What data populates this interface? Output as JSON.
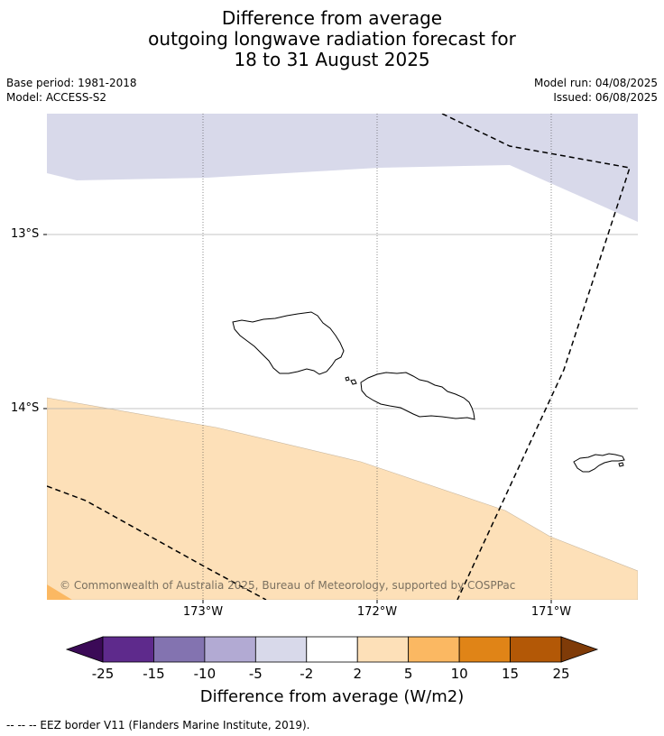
{
  "title": {
    "line1": "Difference from average",
    "line2": "outgoing longwave radiation forecast for",
    "line3": "18 to 31 August 2025"
  },
  "meta": {
    "base_period": "Base period: 1981-2018",
    "model": "Model: ACCESS-S2",
    "model_run": "Model run: 04/08/2025",
    "issued": "Issued: 06/08/2025"
  },
  "map": {
    "lat_labels": [
      "13°S",
      "14°S"
    ],
    "lon_labels": [
      "173°W",
      "172°W",
      "171°W"
    ],
    "copyright": "© Commonwealth of Australia 2025, Bureau of Meteorology, supported by COSPPac",
    "colors": {
      "light_lavender": "#d8d9ea",
      "light_orange": "#fde0b8",
      "orange": "#fbb862"
    }
  },
  "colorbar": {
    "title": "Difference from average (W/m2)",
    "tick_labels": [
      "-25",
      "-15",
      "-10",
      "-5",
      "-2",
      "2",
      "5",
      "10",
      "15",
      "25"
    ],
    "colors": [
      "#3b0a57",
      "#5e2a8c",
      "#8373b0",
      "#b2aad3",
      "#d8d9ea",
      "#ffffff",
      "#fde0b8",
      "#fbb862",
      "#e08417",
      "#b35806",
      "#7f3b08"
    ]
  },
  "footnote": "--  --  -- EEZ border V11 (Flanders Marine Institute, 2019)."
}
